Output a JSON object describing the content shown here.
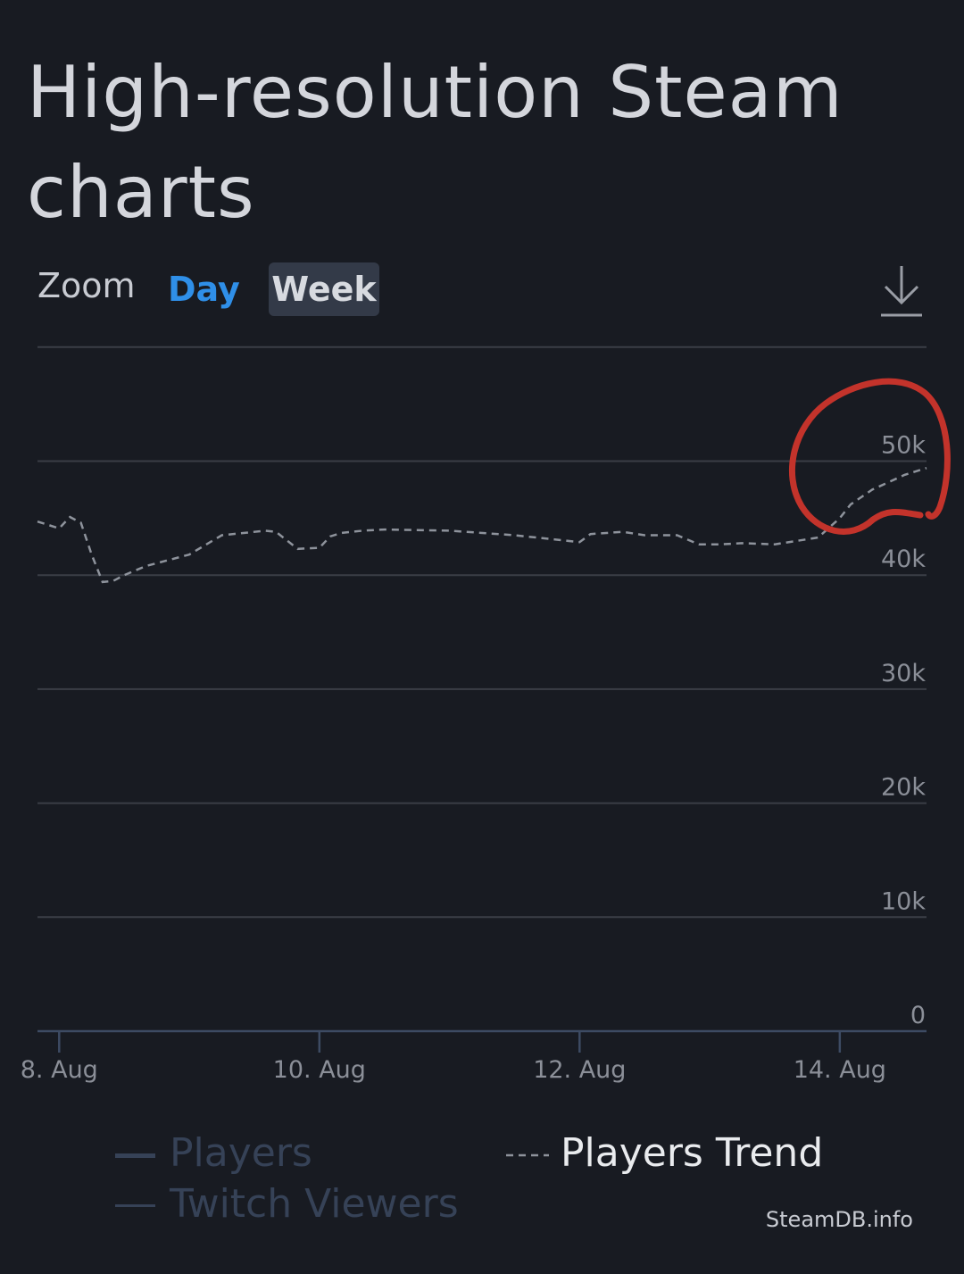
{
  "page": {
    "title": "High-resolution Steam charts"
  },
  "zoom": {
    "label": "Zoom",
    "options": [
      "Day",
      "Week"
    ],
    "active": "Week"
  },
  "credit": "SteamDB.info",
  "colors": {
    "background": "#181b22",
    "grid": "#3a3e46",
    "axis": "#3d4b63",
    "tick_label": "#8b8f98",
    "trend_line": "#8e939c",
    "day_link": "#2f8fe8",
    "week_button": "#333a48",
    "annotation": "#c3332b",
    "legend_inactive": "#364257",
    "legend_active": "#e9ebee"
  },
  "icons": {
    "download": "download-icon"
  },
  "chart_data": {
    "type": "line",
    "xlabel": "",
    "ylabel": "",
    "ylim": [
      0,
      60000
    ],
    "yticks": [
      0,
      10000,
      20000,
      30000,
      40000,
      50000
    ],
    "ytick_labels": [
      "0",
      "10k",
      "20k",
      "30k",
      "40k",
      "50k"
    ],
    "xlim": [
      "2023-08-07 20:00",
      "2023-08-14 16:00"
    ],
    "xticks": [
      "2023-08-08",
      "2023-08-10",
      "2023-08-12",
      "2023-08-14"
    ],
    "xtick_labels": [
      "8. Aug",
      "10. Aug",
      "12. Aug",
      "14. Aug"
    ],
    "legend": [
      {
        "name": "Players",
        "style": "solid",
        "active": false
      },
      {
        "name": "Twitch Viewers",
        "style": "solid",
        "active": false
      },
      {
        "name": "Players Trend",
        "style": "dashed",
        "active": true
      }
    ],
    "series": [
      {
        "name": "Players Trend",
        "style": "dashed",
        "x": [
          "2023-08-07 20:00",
          "2023-08-08 00:00",
          "2023-08-08 02:00",
          "2023-08-08 04:00",
          "2023-08-08 06:00",
          "2023-08-08 08:00",
          "2023-08-08 10:00",
          "2023-08-08 12:00",
          "2023-08-08 16:00",
          "2023-08-09 00:00",
          "2023-08-09 06:00",
          "2023-08-09 10:00",
          "2023-08-09 14:00",
          "2023-08-09 16:00",
          "2023-08-09 20:00",
          "2023-08-10 00:00",
          "2023-08-10 02:00",
          "2023-08-10 04:00",
          "2023-08-10 06:00",
          "2023-08-10 08:00",
          "2023-08-10 12:00",
          "2023-08-11 00:00",
          "2023-08-11 12:00",
          "2023-08-12 00:00",
          "2023-08-12 02:00",
          "2023-08-12 08:00",
          "2023-08-12 12:00",
          "2023-08-12 18:00",
          "2023-08-12 22:00",
          "2023-08-13 02:00",
          "2023-08-13 06:00",
          "2023-08-13 12:00",
          "2023-08-13 20:00",
          "2023-08-14 00:00",
          "2023-08-14 02:00",
          "2023-08-14 06:00",
          "2023-08-14 12:00",
          "2023-08-14 16:00"
        ],
        "values": [
          44700,
          44100,
          45100,
          44600,
          41800,
          39400,
          39500,
          40000,
          40800,
          41800,
          43500,
          43700,
          43900,
          43800,
          42300,
          42400,
          43400,
          43700,
          43800,
          43900,
          44000,
          43900,
          43500,
          42900,
          43600,
          43800,
          43500,
          43500,
          42700,
          42700,
          42800,
          42700,
          43300,
          45000,
          46200,
          47500,
          48800,
          49400
        ]
      }
    ]
  }
}
